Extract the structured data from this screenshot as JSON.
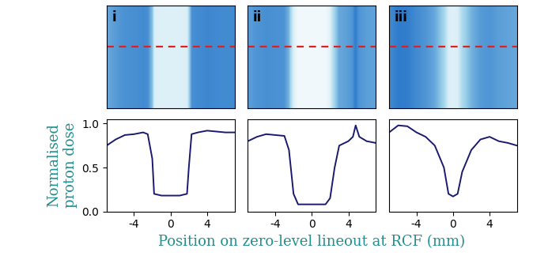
{
  "chart_data": [
    {
      "type": "line",
      "title": "i",
      "y_label": "Normalised\nproton dose",
      "x": [
        -7,
        -6,
        -5,
        -4,
        -3,
        -2.5,
        -2,
        -1.8,
        -1,
        0,
        1,
        1.8,
        2,
        2.3,
        3,
        4,
        5,
        6,
        7
      ],
      "values": [
        0.75,
        0.82,
        0.87,
        0.88,
        0.9,
        0.88,
        0.6,
        0.2,
        0.18,
        0.18,
        0.18,
        0.2,
        0.5,
        0.88,
        0.9,
        0.92,
        0.91,
        0.9,
        0.9
      ],
      "color": "#1a1a6e",
      "xlim": [
        -7,
        7
      ],
      "xticks": [
        -4,
        0,
        4
      ],
      "ylim": [
        0,
        1.05
      ],
      "yticks": [
        {
          "value": 0,
          "label": "0.0"
        },
        0.5,
        {
          "value": 1,
          "label": "1.0"
        }
      ]
    },
    {
      "type": "line",
      "title": "ii",
      "x_label": "Position on zero-level lineout at RCF (mm)",
      "x": [
        -7,
        -6,
        -5,
        -4,
        -3,
        -2.5,
        -2,
        -1.5,
        0,
        1.5,
        2,
        2.5,
        3,
        4,
        4.5,
        4.8,
        5.2,
        6,
        7
      ],
      "values": [
        0.8,
        0.85,
        0.88,
        0.87,
        0.86,
        0.7,
        0.2,
        0.08,
        0.08,
        0.08,
        0.15,
        0.5,
        0.75,
        0.8,
        0.85,
        0.98,
        0.85,
        0.8,
        0.78
      ],
      "color": "#1a1a6e",
      "xlim": [
        -7,
        7
      ],
      "xticks": [
        -4,
        0,
        4
      ],
      "ylim": [
        0,
        1.05
      ],
      "tick_labels": "x"
    },
    {
      "type": "line",
      "title": "iii",
      "x": [
        -7,
        -6,
        -5,
        -4,
        -3,
        -2,
        -1,
        -0.5,
        0,
        0.5,
        1,
        2,
        3,
        4,
        5,
        6,
        7
      ],
      "values": [
        0.9,
        0.98,
        0.97,
        0.9,
        0.85,
        0.75,
        0.5,
        0.2,
        0.17,
        0.2,
        0.45,
        0.7,
        0.82,
        0.85,
        0.8,
        0.78,
        0.75
      ],
      "color": "#1a1a6e",
      "xlim": [
        -7,
        7
      ],
      "xticks": [
        -4,
        0,
        4
      ],
      "ylim": [
        0,
        1.05
      ],
      "tick_labels": "x"
    }
  ]
}
